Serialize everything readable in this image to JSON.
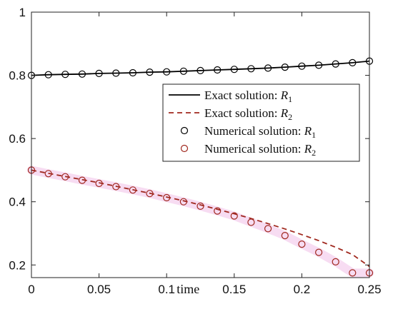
{
  "chart_data": {
    "type": "line",
    "title": "",
    "xlabel": "time",
    "ylabel": "",
    "xlim": [
      0,
      0.25
    ],
    "ylim": [
      0.16,
      1.0
    ],
    "x_ticks": [
      "0",
      "0.05",
      "0.1",
      "0.15",
      "0.2",
      "0.25"
    ],
    "y_ticks": [
      "0.2",
      "0.4",
      "0.6",
      "0.8",
      "1"
    ],
    "grid": false,
    "legend_position": "right",
    "series": [
      {
        "name": "Exact solution: R1",
        "legend_text": "Exact solution: ",
        "legend_var": "R",
        "legend_sub": "1",
        "style": "solid",
        "marker": "none",
        "color": "#000000",
        "x": [
          0,
          0.0125,
          0.025,
          0.0375,
          0.05,
          0.0625,
          0.075,
          0.0875,
          0.1,
          0.1125,
          0.125,
          0.1375,
          0.15,
          0.1625,
          0.175,
          0.1875,
          0.2,
          0.2125,
          0.225,
          0.2375,
          0.25
        ],
        "values": [
          0.8,
          0.802,
          0.803,
          0.804,
          0.806,
          0.807,
          0.808,
          0.81,
          0.811,
          0.813,
          0.815,
          0.817,
          0.819,
          0.821,
          0.823,
          0.826,
          0.829,
          0.832,
          0.836,
          0.84,
          0.845
        ]
      },
      {
        "name": "Exact solution: R2",
        "legend_text": "Exact solution: ",
        "legend_var": "R",
        "legend_sub": "2",
        "style": "dashed",
        "marker": "none",
        "color": "#a0281e",
        "x": [
          0,
          0.0125,
          0.025,
          0.0375,
          0.05,
          0.0625,
          0.075,
          0.0875,
          0.1,
          0.1125,
          0.125,
          0.1375,
          0.15,
          0.1625,
          0.175,
          0.1875,
          0.2,
          0.2125,
          0.225,
          0.2375,
          0.25
        ],
        "values": [
          0.5,
          0.49,
          0.48,
          0.47,
          0.46,
          0.449,
          0.438,
          0.427,
          0.415,
          0.403,
          0.39,
          0.376,
          0.362,
          0.347,
          0.331,
          0.314,
          0.296,
          0.277,
          0.256,
          0.233,
          0.195
        ]
      },
      {
        "name": "Numerical solution: R1",
        "legend_text": "Numerical solution: ",
        "legend_var": "R",
        "legend_sub": "1",
        "style": "none",
        "marker": "circle",
        "color": "#000000",
        "x": [
          0,
          0.0125,
          0.025,
          0.0375,
          0.05,
          0.0625,
          0.075,
          0.0875,
          0.1,
          0.1125,
          0.125,
          0.1375,
          0.15,
          0.1625,
          0.175,
          0.1875,
          0.2,
          0.2125,
          0.225,
          0.2375,
          0.25
        ],
        "values": [
          0.8,
          0.802,
          0.803,
          0.804,
          0.806,
          0.807,
          0.808,
          0.81,
          0.811,
          0.813,
          0.815,
          0.817,
          0.819,
          0.821,
          0.823,
          0.826,
          0.829,
          0.832,
          0.836,
          0.84,
          0.845
        ]
      },
      {
        "name": "Numerical solution: R2",
        "legend_text": "Numerical solution: ",
        "legend_var": "R",
        "legend_sub": "2",
        "style": "none",
        "marker": "circle",
        "color": "#a0281e",
        "x": [
          0,
          0.0125,
          0.025,
          0.0375,
          0.05,
          0.0625,
          0.075,
          0.0875,
          0.1,
          0.1125,
          0.125,
          0.1375,
          0.15,
          0.1625,
          0.175,
          0.1875,
          0.2,
          0.2125,
          0.225,
          0.2375,
          0.25
        ],
        "values": [
          0.5,
          0.489,
          0.479,
          0.468,
          0.458,
          0.448,
          0.437,
          0.426,
          0.413,
          0.4,
          0.386,
          0.371,
          0.355,
          0.335,
          0.315,
          0.293,
          0.266,
          0.24,
          0.21,
          0.175,
          0.175
        ]
      }
    ],
    "highlight_color": "#f6d6f0"
  }
}
